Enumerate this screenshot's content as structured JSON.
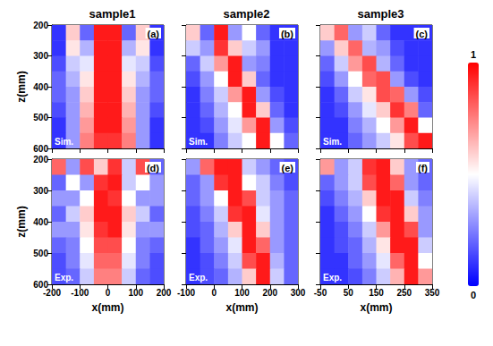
{
  "chart_data": {
    "type": "heatmap",
    "column_titles": [
      "sample1",
      "sample2",
      "sample3"
    ],
    "colorbar": {
      "range": [
        0,
        1
      ],
      "ticks": [
        0,
        1
      ],
      "colors": [
        "#0000ff",
        "#ffffff",
        "#ff0000"
      ]
    },
    "panels": [
      {
        "letter": "(a)",
        "tag": "Sim.",
        "ylabel": "z(mm)",
        "tick_labels": "y",
        "xlim": [
          -200,
          200
        ],
        "xticks": [
          -200,
          -100,
          0,
          100,
          200
        ],
        "ylim": [
          200,
          600
        ],
        "yticks": [
          200,
          300,
          400,
          500,
          600
        ],
        "x": [
          -175,
          -125,
          -75,
          -25,
          25,
          75,
          125,
          175
        ],
        "y": [
          225,
          275,
          325,
          375,
          425,
          475,
          525,
          575
        ],
        "cells": [
          [
            0.1,
            0.6,
            0.2,
            0.95,
            0.95,
            0.2,
            0.6,
            0.1
          ],
          [
            0.1,
            0.55,
            0.35,
            0.95,
            0.95,
            0.35,
            0.55,
            0.1
          ],
          [
            0.15,
            0.4,
            0.45,
            0.95,
            0.95,
            0.45,
            0.4,
            0.15
          ],
          [
            0.2,
            0.35,
            0.55,
            0.95,
            0.95,
            0.55,
            0.35,
            0.2
          ],
          [
            0.2,
            0.3,
            0.6,
            0.95,
            0.95,
            0.6,
            0.3,
            0.2
          ],
          [
            0.15,
            0.3,
            0.65,
            0.95,
            0.95,
            0.65,
            0.3,
            0.15
          ],
          [
            0.1,
            0.3,
            0.7,
            0.95,
            0.95,
            0.7,
            0.3,
            0.1
          ],
          [
            0.1,
            0.3,
            0.75,
            0.9,
            0.9,
            0.75,
            0.3,
            0.1
          ]
        ]
      },
      {
        "letter": "(b)",
        "tag": "Sim.",
        "tick_labels": false,
        "xlim": [
          -100,
          300
        ],
        "xticks": [
          -100,
          0,
          100,
          200,
          300
        ],
        "ylim": [
          200,
          600
        ],
        "yticks": [
          200,
          300,
          400,
          500,
          600
        ],
        "x": [
          -75,
          -25,
          25,
          75,
          125,
          175,
          225,
          275
        ],
        "y": [
          225,
          275,
          325,
          375,
          425,
          475,
          525,
          575
        ],
        "cells": [
          [
            0.6,
            0.2,
            0.95,
            0.3,
            0.5,
            0.2,
            0.1,
            0.1
          ],
          [
            0.4,
            0.3,
            0.9,
            0.6,
            0.4,
            0.3,
            0.1,
            0.1
          ],
          [
            0.2,
            0.4,
            0.7,
            0.95,
            0.3,
            0.25,
            0.1,
            0.1
          ],
          [
            0.15,
            0.3,
            0.5,
            0.95,
            0.6,
            0.2,
            0.1,
            0.1
          ],
          [
            0.1,
            0.25,
            0.4,
            0.7,
            0.95,
            0.3,
            0.15,
            0.1
          ],
          [
            0.1,
            0.2,
            0.35,
            0.5,
            0.95,
            0.6,
            0.2,
            0.1
          ],
          [
            0.1,
            0.15,
            0.3,
            0.45,
            0.7,
            0.95,
            0.3,
            0.15
          ],
          [
            0.1,
            0.1,
            0.25,
            0.4,
            0.5,
            0.95,
            0.5,
            0.2
          ]
        ]
      },
      {
        "letter": "(c)",
        "tag": "Sim.",
        "tick_labels": false,
        "xlim": [
          -50,
          350
        ],
        "xticks": [
          -50,
          50,
          150,
          250,
          350
        ],
        "ylim": [
          200,
          600
        ],
        "yticks": [
          200,
          300,
          400,
          500,
          600
        ],
        "x": [
          -25,
          25,
          75,
          125,
          175,
          225,
          275,
          325
        ],
        "y": [
          225,
          275,
          325,
          375,
          425,
          475,
          525,
          575
        ],
        "cells": [
          [
            0.6,
            0.8,
            0.3,
            0.4,
            0.2,
            0.1,
            0.1,
            0.1
          ],
          [
            0.3,
            0.6,
            0.8,
            0.35,
            0.3,
            0.15,
            0.1,
            0.1
          ],
          [
            0.2,
            0.4,
            0.7,
            0.85,
            0.35,
            0.2,
            0.1,
            0.1
          ],
          [
            0.15,
            0.3,
            0.5,
            0.8,
            0.85,
            0.3,
            0.15,
            0.1
          ],
          [
            0.1,
            0.2,
            0.4,
            0.55,
            0.85,
            0.8,
            0.3,
            0.15
          ],
          [
            0.1,
            0.15,
            0.3,
            0.45,
            0.6,
            0.9,
            0.75,
            0.2
          ],
          [
            0.1,
            0.1,
            0.25,
            0.35,
            0.5,
            0.7,
            0.95,
            0.5
          ],
          [
            0.1,
            0.1,
            0.2,
            0.3,
            0.4,
            0.55,
            0.85,
            0.95
          ]
        ]
      },
      {
        "letter": "(d)",
        "tag": "Exp.",
        "xlabel": "x(mm)",
        "ylabel": "z(mm)",
        "tick_labels": true,
        "xlim": [
          -200,
          200
        ],
        "xticks": [
          -200,
          -100,
          0,
          100,
          200
        ],
        "ylim": [
          200,
          600
        ],
        "yticks": [
          200,
          300,
          400,
          500,
          600
        ],
        "x": [
          -175,
          -125,
          -75,
          -25,
          25,
          75,
          125,
          175
        ],
        "y": [
          225,
          275,
          325,
          375,
          425,
          475,
          525,
          575
        ],
        "cells": [
          [
            0.8,
            0.3,
            0.85,
            0.6,
            0.9,
            0.4,
            0.85,
            0.2
          ],
          [
            0.2,
            0.5,
            0.3,
            0.9,
            0.95,
            0.4,
            0.5,
            0.3
          ],
          [
            0.3,
            0.3,
            0.5,
            0.95,
            0.9,
            0.5,
            0.3,
            0.3
          ],
          [
            0.2,
            0.4,
            0.6,
            0.95,
            0.95,
            0.6,
            0.4,
            0.2
          ],
          [
            0.3,
            0.3,
            0.55,
            0.9,
            0.95,
            0.55,
            0.3,
            0.3
          ],
          [
            0.2,
            0.25,
            0.5,
            0.85,
            0.85,
            0.5,
            0.25,
            0.2
          ],
          [
            0.15,
            0.25,
            0.45,
            0.8,
            0.8,
            0.45,
            0.25,
            0.15
          ],
          [
            0.15,
            0.2,
            0.4,
            0.75,
            0.75,
            0.4,
            0.2,
            0.15
          ]
        ]
      },
      {
        "letter": "(e)",
        "tag": "Exp.",
        "xlabel": "x(mm)",
        "tick_labels": "x",
        "xlim": [
          -100,
          300
        ],
        "xticks": [
          -100,
          0,
          100,
          200,
          300
        ],
        "ylim": [
          200,
          600
        ],
        "yticks": [
          200,
          300,
          400,
          500,
          600
        ],
        "x": [
          -75,
          -25,
          25,
          75,
          125,
          175,
          225,
          275
        ],
        "y": [
          225,
          275,
          325,
          375,
          425,
          475,
          525,
          575
        ],
        "cells": [
          [
            0.3,
            0.8,
            0.95,
            0.95,
            0.4,
            0.3,
            0.2,
            0.15
          ],
          [
            0.2,
            0.3,
            0.9,
            0.95,
            0.5,
            0.4,
            0.25,
            0.15
          ],
          [
            0.2,
            0.3,
            0.5,
            0.95,
            0.85,
            0.4,
            0.3,
            0.2
          ],
          [
            0.15,
            0.25,
            0.4,
            0.9,
            0.95,
            0.45,
            0.3,
            0.2
          ],
          [
            0.15,
            0.2,
            0.35,
            0.6,
            0.95,
            0.6,
            0.3,
            0.2
          ],
          [
            0.1,
            0.2,
            0.3,
            0.45,
            0.95,
            0.8,
            0.3,
            0.2
          ],
          [
            0.1,
            0.15,
            0.25,
            0.4,
            0.85,
            0.95,
            0.35,
            0.2
          ],
          [
            0.1,
            0.15,
            0.2,
            0.35,
            0.6,
            0.95,
            0.4,
            0.2
          ]
        ]
      },
      {
        "letter": "(f)",
        "tag": "Exp.",
        "xlabel": "x(mm)",
        "tick_labels": "x",
        "xlim": [
          -50,
          350
        ],
        "xticks": [
          -50,
          50,
          150,
          250,
          350
        ],
        "ylim": [
          200,
          600
        ],
        "yticks": [
          200,
          300,
          400,
          500,
          600
        ],
        "x": [
          -25,
          25,
          75,
          125,
          175,
          225,
          275,
          325
        ],
        "y": [
          225,
          275,
          325,
          375,
          425,
          475,
          525,
          575
        ],
        "cells": [
          [
            0.7,
            0.3,
            0.4,
            0.9,
            0.95,
            0.6,
            0.3,
            0.2
          ],
          [
            0.2,
            0.3,
            0.4,
            0.85,
            0.95,
            0.8,
            0.3,
            0.2
          ],
          [
            0.15,
            0.25,
            0.35,
            0.6,
            0.95,
            0.95,
            0.4,
            0.25
          ],
          [
            0.1,
            0.2,
            0.3,
            0.5,
            0.9,
            0.95,
            0.6,
            0.3
          ],
          [
            0.1,
            0.15,
            0.25,
            0.4,
            0.7,
            0.95,
            0.85,
            0.3
          ],
          [
            0.1,
            0.15,
            0.2,
            0.35,
            0.55,
            0.95,
            0.95,
            0.4
          ],
          [
            0.1,
            0.1,
            0.2,
            0.3,
            0.45,
            0.8,
            0.95,
            0.5
          ],
          [
            0.1,
            0.1,
            0.15,
            0.25,
            0.4,
            0.65,
            0.95,
            0.7
          ]
        ]
      }
    ]
  }
}
